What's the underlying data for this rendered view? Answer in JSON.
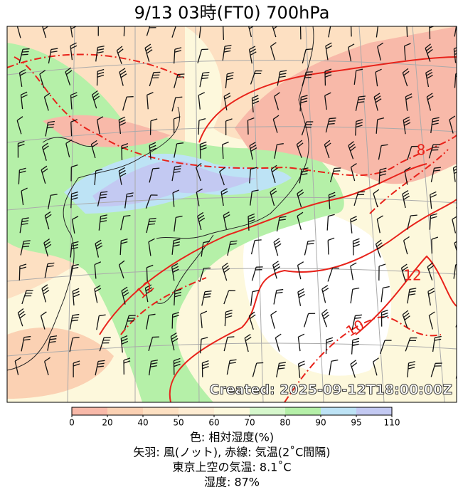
{
  "title": "9/13  03時(FT0)     700hPa",
  "created": "Created: 2025-09-12T18:00:00Z",
  "contour_labels": [
    8,
    10,
    12,
    12
  ],
  "colorbar": {
    "ticks": [
      0,
      20,
      40,
      50,
      60,
      70,
      80,
      90,
      95,
      110
    ],
    "colors": [
      "#f8b9a9",
      "#fbd1b3",
      "#fde0c2",
      "#feecd2",
      "#fdf8dc",
      "#d6f7cc",
      "#b5f0a8",
      "#bde3f5",
      "#c3c9f2"
    ]
  },
  "legend_lines": [
    "色: 相対湿度(%)",
    "矢羽: 風(ノット),  赤線: 気温(2˚C間隔)",
    "東京上空の気温: 8.1˚C",
    "湿度: 87%"
  ]
}
